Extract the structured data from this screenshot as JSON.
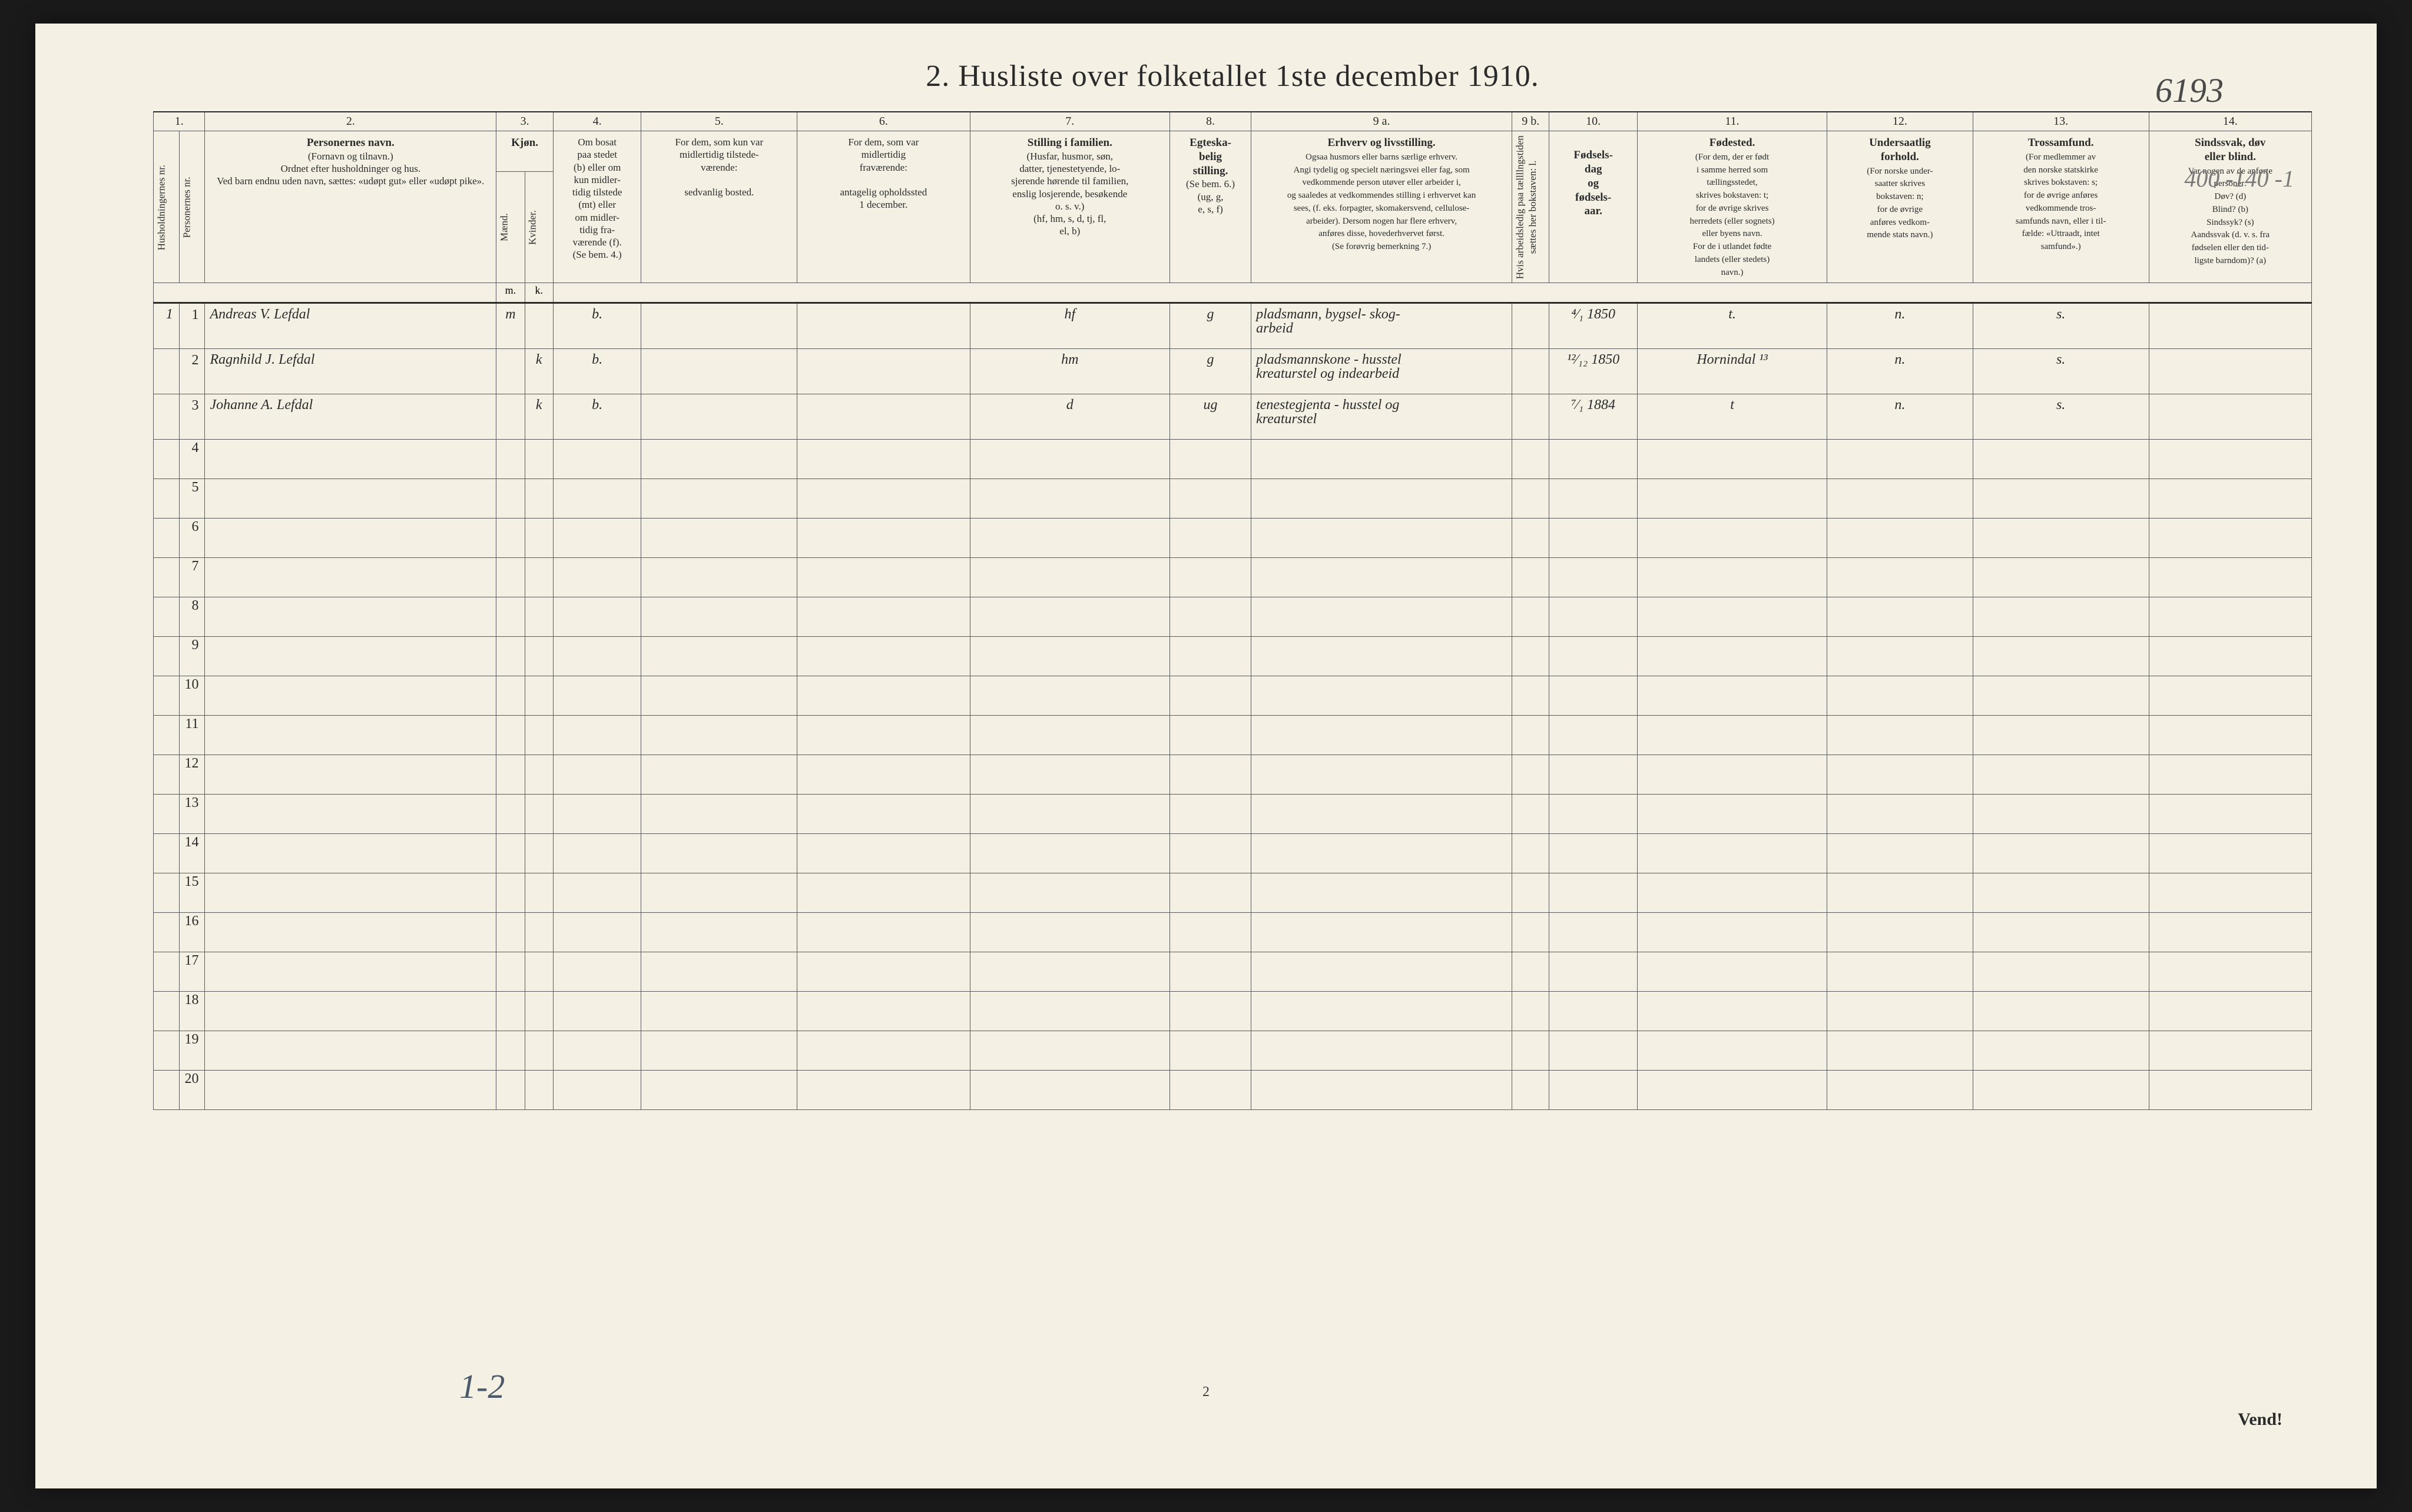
{
  "title": "2.  Husliste over folketallet 1ste december 1910.",
  "handwritten_top_right": "6193",
  "handwritten_right_margin": "400 -140 -1",
  "handwritten_bottom": "1-2",
  "page_number": "2",
  "vend": "Vend!",
  "col_numbers": [
    "1.",
    "2.",
    "3.",
    "4.",
    "5.",
    "6.",
    "7.",
    "8.",
    "9 a.",
    "9 b.",
    "10.",
    "11.",
    "12.",
    "13.",
    "14."
  ],
  "headers": {
    "c1a": "Husholdningernes nr.",
    "c1b": "Personernes nr.",
    "c2_title": "Personernes navn.",
    "c2_sub": "(Fornavn og tilnavn.)\nOrdnet efter husholdninger og hus.\nVed barn endnu uden navn, sættes: «udøpt gut» eller «udøpt pike».",
    "c3_title": "Kjøn.",
    "c3a": "Mænd.",
    "c3b": "Kvinder.",
    "c3_mk": "m. | k.",
    "c4_title": "Om bosat\npaa stedet\n(b) eller om\nkun midler-\ntidig tilstede\n(mt) eller\nom midler-\ntidig fra-\nværende (f).\n(Se bem. 4.)",
    "c5_title": "For dem, som kun var\nmidlertidig tilstede-\nværende:",
    "c5_sub": "sedvanlig bosted.",
    "c6_title": "For dem, som var\nmidlertidig\nfraværende:",
    "c6_sub": "antagelig opholdssted\n1 december.",
    "c7_title": "Stilling i familien.",
    "c7_sub": "(Husfar, husmor, søn,\ndatter, tjenestetyende, lo-\nsjerende hørende til familien,\nenslig losjerende, besøkende\no. s. v.)\n(hf, hm, s, d, tj, fl,\nel, b)",
    "c8_title": "Egteska-\nbelig\nstilling.",
    "c8_sub": "(Se bem. 6.)\n(ug, g,\ne, s, f)",
    "c9a_title": "Erhverv og livsstilling.",
    "c9a_sub": "Ogsaa husmors eller barns særlige erhverv.\nAngi tydelig og specielt næringsvei eller fag, som\nvedkommende person utøver eller arbeider i,\nog saaledes at vedkommendes stilling i erhvervet kan\nsees, (f. eks. forpagter, skomakersvend, cellulose-\narbeider). Dersom nogen har flere erhverv,\nanføres disse, hovederhvervet først.\n(Se forøvrig bemerkning 7.)",
    "c9b": "Hvis arbeidsledig\npaa tællllngstiden sættes\nher bokstaven: l.",
    "c10_title": "Fødsels-\ndag\nog\nfødsels-\naar.",
    "c11_title": "Fødested.",
    "c11_sub": "(For dem, der er født\ni samme herred som\ntællingsstedet,\nskrives bokstaven: t;\nfor de øvrige skrives\nherredets (eller sognets)\neller byens navn.\nFor de i utlandet fødte\nlandets (eller stedets)\nnavn.)",
    "c12_title": "Undersaatlig\nforhold.",
    "c12_sub": "(For norske under-\nsaatter skrives\nbokstaven: n;\nfor de øvrige\nanføres vedkom-\nmende stats navn.)",
    "c13_title": "Trossamfund.",
    "c13_sub": "(For medlemmer av\nden norske statskirke\nskrives bokstaven: s;\nfor de øvrige anføres\nvedkommende tros-\nsamfunds navn, eller i til-\nfælde: «Uttraadt, intet\nsamfund».)",
    "c14_title": "Sindssvak, døv\neller blind.",
    "c14_sub": "Var nogen av de anførte\npersoner:\nDøv?        (d)\nBlind?      (b)\nSindssyk? (s)\nAandssvak (d. v. s. fra\nfødselen eller den tid-\nligste barndom)? (a)"
  },
  "rows": [
    {
      "hh": "1",
      "pnr": "1",
      "name": "Andreas V. Lefdal",
      "sex": "m",
      "bosat": "b.",
      "c5": "",
      "c6": "",
      "famstilling": "hf",
      "egteskab": "g",
      "erhverv": "pladsmann, bygsel- skog-\narbeid",
      "fodselsdag": "⁴⁄₁ 1850",
      "fodested": "t.",
      "undersaat": "n.",
      "tros": "s.",
      "c14": ""
    },
    {
      "hh": "",
      "pnr": "2",
      "name": "Ragnhild J. Lefdal",
      "sex": "k",
      "bosat": "b.",
      "c5": "",
      "c6": "",
      "famstilling": "hm",
      "egteskab": "g",
      "erhverv": "pladsmannskone - husstel\nkreaturstel og indearbeid",
      "fodselsdag": "¹²⁄₁₂ 1850",
      "fodested": "Hornindal ¹³",
      "undersaat": "n.",
      "tros": "s.",
      "c14": ""
    },
    {
      "hh": "",
      "pnr": "3",
      "name": "Johanne A. Lefdal",
      "sex": "k",
      "bosat": "b.",
      "c5": "",
      "c6": "",
      "famstilling": "d",
      "egteskab": "ug",
      "erhverv": "tenestegjenta - husstel og\nkreaturstel",
      "fodselsdag": "⁷⁄₁ 1884",
      "fodested": "t",
      "undersaat": "n.",
      "tros": "s.",
      "c14": ""
    }
  ],
  "empty_row_numbers": [
    "4",
    "5",
    "6",
    "7",
    "8",
    "9",
    "10",
    "11",
    "12",
    "13",
    "14",
    "15",
    "16",
    "17",
    "18",
    "19",
    "20"
  ],
  "colors": {
    "paper_bg": "#f4f0e4",
    "ink": "#2b2b2b",
    "rule": "#5a5a5a",
    "hand_ink": "#3a3a3a",
    "page_bg": "#1a1a1a"
  }
}
